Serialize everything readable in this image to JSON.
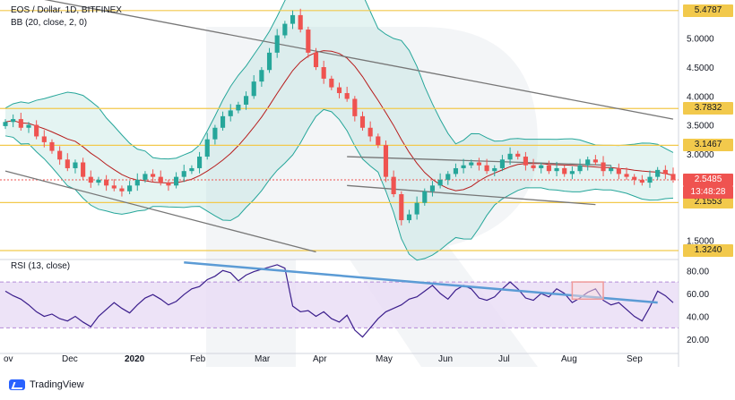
{
  "header": {
    "symbol_line": "EOS / Dollar, 1D, BITFINEX",
    "indicator_line": "BB (20, close, 2, 0)",
    "rsi_label": "RSI (13, close)"
  },
  "footer": {
    "brand": "TradingView"
  },
  "colors": {
    "up_candle": "#26a69a",
    "down_candle": "#ef5350",
    "bb_band": "#26a69a",
    "bb_basis": "#b71c1c",
    "bb_fill": "#b2dfdb",
    "level_line": "#f2c94c",
    "trend_line": "#777777",
    "rsi_line": "#3b1e8c",
    "rsi_trend": "#5b9bd5",
    "rsi_band_fill": "#e9dcf5",
    "highlight_box": "#ef9a9a",
    "current_price": "#ef5350"
  },
  "chart_data": {
    "type": "candlestick",
    "price_axis": {
      "ticks": [
        "5.0000",
        "4.5000",
        "4.0000",
        "3.5000",
        "3.0000",
        "1.5000"
      ],
      "ylim": [
        1.2,
        5.6
      ]
    },
    "time_axis": {
      "ticks": [
        "ov",
        "Dec",
        "2020",
        "Feb",
        "Mar",
        "Apr",
        "May",
        "Jun",
        "Jul",
        "Aug",
        "Sep"
      ]
    },
    "levels": [
      {
        "label": "5.4787",
        "value": 5.4787
      },
      {
        "label": "3.7832",
        "value": 3.7832
      },
      {
        "label": "3.1467",
        "value": 3.1467
      },
      {
        "label": "2.1553",
        "value": 2.1553
      },
      {
        "label": "1.3240",
        "value": 1.324
      }
    ],
    "current_price": {
      "label": "2.5485",
      "value": 2.5485
    },
    "countdown": "13:48:28",
    "close_series": [
      3.55,
      3.6,
      3.45,
      3.5,
      3.3,
      3.2,
      3.05,
      2.9,
      2.75,
      2.85,
      2.6,
      2.5,
      2.55,
      2.45,
      2.4,
      2.35,
      2.45,
      2.55,
      2.65,
      2.6,
      2.5,
      2.45,
      2.6,
      2.7,
      2.75,
      2.95,
      3.25,
      3.45,
      3.65,
      3.75,
      3.85,
      4.0,
      4.25,
      4.45,
      4.75,
      5.05,
      5.25,
      5.4,
      5.15,
      4.75,
      4.5,
      4.3,
      4.15,
      4.05,
      3.95,
      3.65,
      3.45,
      3.3,
      3.15,
      2.6,
      2.3,
      1.85,
      1.95,
      2.15,
      2.35,
      2.45,
      2.55,
      2.65,
      2.75,
      2.8,
      2.85,
      2.8,
      2.7,
      2.75,
      2.9,
      3.0,
      2.95,
      2.8,
      2.75,
      2.8,
      2.7,
      2.75,
      2.65,
      2.7,
      2.8,
      2.9,
      2.85,
      2.7,
      2.75,
      2.65,
      2.6,
      2.55,
      2.5,
      2.6,
      2.72,
      2.65,
      2.55
    ],
    "resistance_trend": [
      [
        0,
        5.8
      ],
      [
        86,
        3.6
      ]
    ],
    "support_trend": [
      [
        0,
        2.7
      ],
      [
        40,
        1.3
      ]
    ],
    "channel_upper": [
      [
        44,
        2.95
      ],
      [
        78,
        2.8
      ]
    ],
    "channel_lower": [
      [
        44,
        2.45
      ],
      [
        76,
        2.12
      ]
    ],
    "rsi": {
      "ticks": [
        "80.00",
        "60.00",
        "40.00",
        "20.00"
      ],
      "ylim": [
        10,
        88
      ],
      "band": [
        30,
        70
      ],
      "values": [
        62,
        58,
        55,
        50,
        44,
        40,
        42,
        38,
        36,
        40,
        35,
        31,
        40,
        46,
        52,
        47,
        43,
        50,
        56,
        59,
        55,
        50,
        53,
        59,
        64,
        66,
        72,
        75,
        80,
        78,
        71,
        76,
        79,
        81,
        83,
        85,
        82,
        49,
        44,
        45,
        40,
        44,
        38,
        35,
        41,
        28,
        22,
        30,
        38,
        44,
        47,
        50,
        55,
        57,
        62,
        67,
        60,
        55,
        63,
        67,
        64,
        56,
        54,
        57,
        64,
        70,
        64,
        56,
        54,
        60,
        57,
        64,
        60,
        52,
        56,
        61,
        64,
        54,
        50,
        52,
        46,
        40,
        36,
        48,
        62,
        58,
        52
      ],
      "trend": [
        [
          23,
          87
        ],
        [
          84,
          52
        ]
      ],
      "highlight_box": {
        "x": [
          73,
          77
        ],
        "y": [
          55,
          70
        ]
      }
    }
  }
}
